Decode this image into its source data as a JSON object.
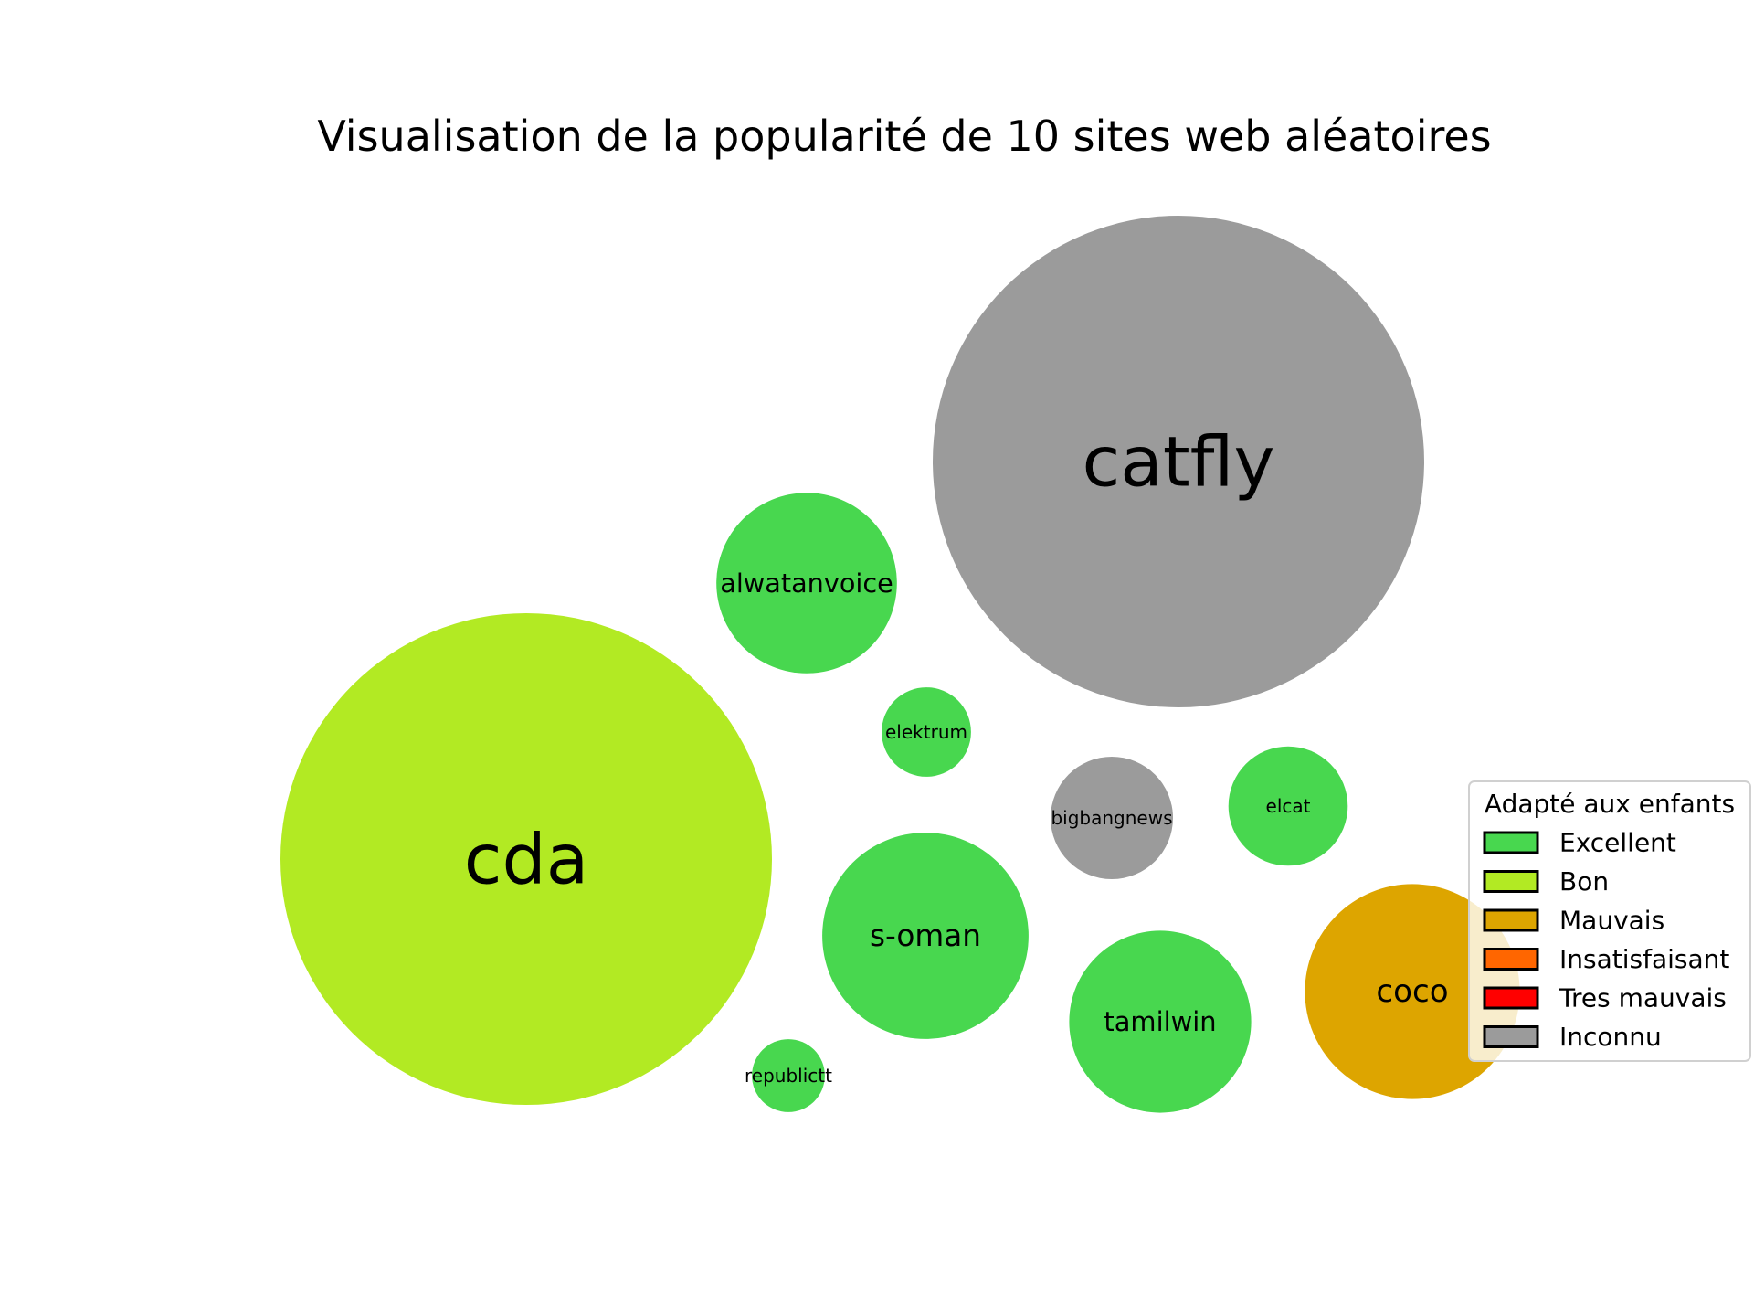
{
  "chart_data": {
    "type": "bubble",
    "title": "Visualisation de la popularité de 10 sites web aléatoires",
    "bubbles": [
      {
        "label": "catfly",
        "category": "Inconnu",
        "size": 100
      },
      {
        "label": "cda",
        "category": "Bon",
        "size": 100
      },
      {
        "label": "alwatanvoice",
        "category": "Excellent",
        "size": 13.5
      },
      {
        "label": "elektrum",
        "category": "Excellent",
        "size": 3.3
      },
      {
        "label": "bigbangnews",
        "category": "Inconnu",
        "size": 6.2
      },
      {
        "label": "elcat",
        "category": "Excellent",
        "size": 5.9
      },
      {
        "label": "s-oman",
        "category": "Excellent",
        "size": 17.6
      },
      {
        "label": "tamilwin",
        "category": "Excellent",
        "size": 13.7
      },
      {
        "label": "coco",
        "category": "Mauvais",
        "size": 19.1
      },
      {
        "label": "republictt",
        "category": "Excellent",
        "size": 2.2
      }
    ],
    "legend": {
      "title": "Adapté aux enfants",
      "placement": "right",
      "items": [
        {
          "label": "Excellent",
          "color": "#48d74f"
        },
        {
          "label": "Bon",
          "color": "#b2ea23"
        },
        {
          "label": "Mauvais",
          "color": "#dda500"
        },
        {
          "label": "Insatisfaisant",
          "color": "#ff6600"
        },
        {
          "label": "Tres mauvais",
          "color": "#ff0000"
        },
        {
          "label": "Inconnu",
          "color": "#9b9b9b"
        }
      ]
    }
  }
}
